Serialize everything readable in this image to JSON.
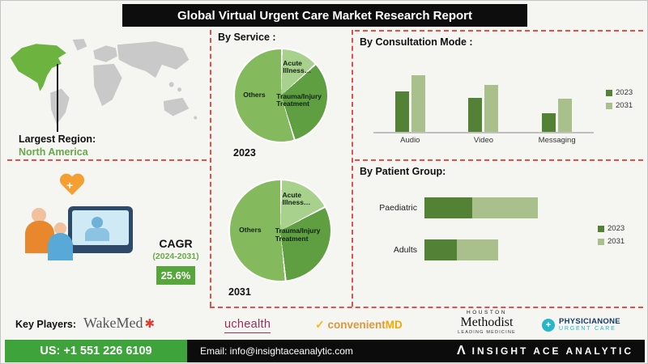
{
  "header": {
    "title": "Global Virtual Urgent Care Market Research Report"
  },
  "left_panel": {
    "largest_region_label": "Largest Region:",
    "largest_region_value": "North America",
    "cagr_label": "CAGR",
    "cagr_period": "(2024-2031)",
    "cagr_value": "25.6%"
  },
  "sections": {
    "by_service_heading": "By Service :",
    "by_consultation_heading": "By Consultation Mode :",
    "by_patient_heading": "By Patient Group:"
  },
  "key_players": {
    "label": "Key Players:",
    "wakemed_name": "WakeMed",
    "wakemed_symbol": "✱",
    "uchealth_name": "uchealth",
    "convenientmd_check": "✓",
    "convenientmd_name": "convenient",
    "convenientmd_suffix": "MD",
    "methodist_city": "HOUSTON",
    "methodist_name": "Methodist",
    "methodist_tagline": "LEADING MEDICINE",
    "physicianone_icon": "+",
    "physicianone_name": "PHYSICIANONE",
    "physicianone_tagline": "URGENT CARE"
  },
  "footer": {
    "phone": "US: +1 551 226 6109",
    "email": "Email: info@insightaceanalytic.com",
    "brand_icon": "Λ",
    "brand": "INSIGHT ACE ANALYTIC"
  },
  "colors": {
    "accent_green_dark": "#538135",
    "accent_green_light": "#a9c08c",
    "cagr_box_green": "#57a63b",
    "phone_box_green": "#3fa33c",
    "dashed_red": "#e2504c",
    "header_bg": "#0d0d0d",
    "map_highlight_green": "#6db33f",
    "map_gray": "#c9c9c9"
  },
  "chart_data": [
    {
      "id": "service_2023",
      "type": "pie",
      "title": "By Service : 2023",
      "year": "2023",
      "labels": [
        "Acute Illness…",
        "Trauma/Injury Treatment",
        "Others"
      ],
      "values": [
        13,
        32,
        55
      ],
      "colors": [
        "#a9d18e",
        "#5f9e41",
        "#84ba5d"
      ]
    },
    {
      "id": "service_2031",
      "type": "pie",
      "title": "By Service : 2031",
      "year": "2031",
      "labels": [
        "Acute Illness…",
        "Trauma/Injury Treatment",
        "Others"
      ],
      "values": [
        17,
        31,
        52
      ],
      "colors": [
        "#a9d18e",
        "#5f9e41",
        "#84ba5d"
      ]
    },
    {
      "id": "consultation",
      "type": "bar",
      "title": "By Consultation Mode",
      "categories": [
        "Audio",
        "Video",
        "Messaging"
      ],
      "series": [
        {
          "name": "2023",
          "values": [
            55,
            47,
            26
          ]
        },
        {
          "name": "2031",
          "values": [
            78,
            64,
            46
          ]
        }
      ],
      "colors": [
        "#538135",
        "#a9c08c"
      ],
      "ylim": [
        0,
        100
      ],
      "legend_position": "right",
      "grid": false
    },
    {
      "id": "patient_group",
      "type": "bar-horizontal-stacked",
      "title": "By Patient Group",
      "categories": [
        "Paediatric",
        "Adults"
      ],
      "series": [
        {
          "name": "2023",
          "values": [
            38,
            26
          ]
        },
        {
          "name": "2031",
          "values": [
            52,
            33
          ]
        }
      ],
      "colors": [
        "#538135",
        "#a9c08c"
      ],
      "xlim": [
        0,
        100
      ],
      "legend_position": "right",
      "grid": false
    }
  ]
}
